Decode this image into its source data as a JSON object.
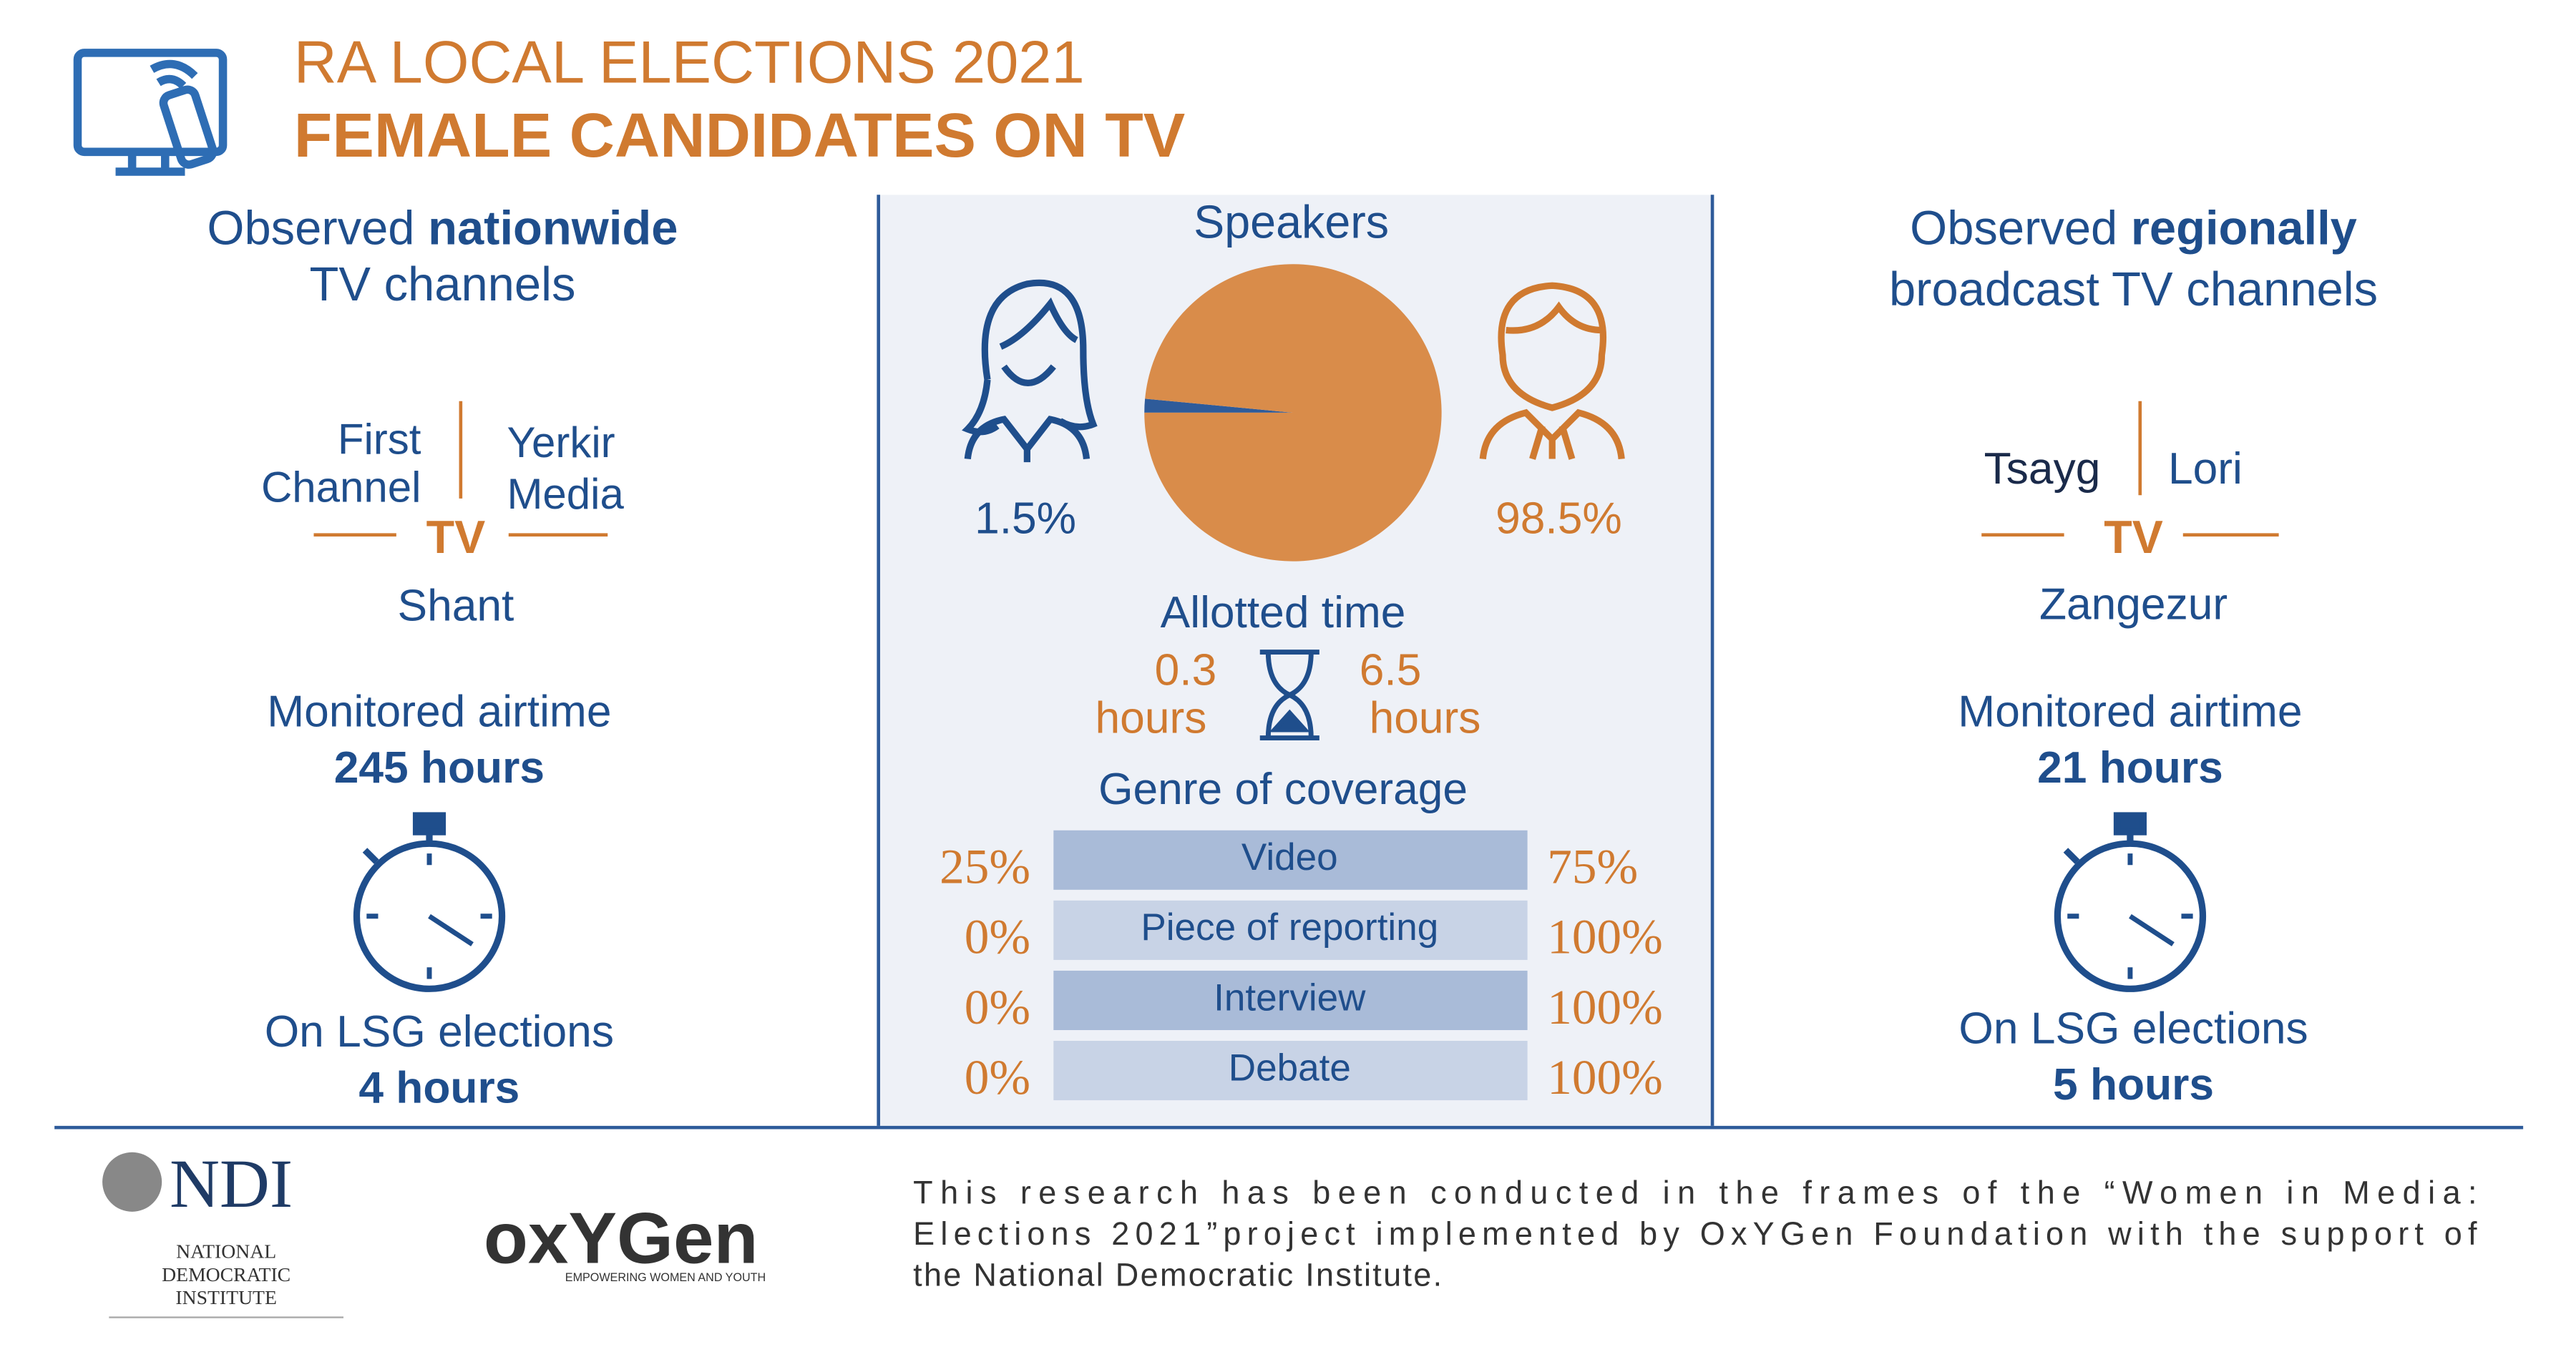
{
  "header": {
    "title": "RA LOCAL ELECTIONS 2021",
    "subtitle": "FEMALE CANDIDATES ON TV"
  },
  "nationwide": {
    "heading": [
      "Observed ",
      "nationwide",
      "TV channels"
    ],
    "channels": [
      [
        "First",
        "Channel"
      ],
      [
        "Yerkir",
        "Media"
      ],
      [
        "Shant"
      ]
    ],
    "tv": "TV",
    "airtime_label": "Monitored airtime",
    "airtime": "245 hours",
    "lsg_label": "On LSG elections",
    "lsg": "4 hours"
  },
  "regional": {
    "heading": [
      "Observed ",
      "regionally",
      "broadcast TV channels"
    ],
    "channels": [
      [
        "Tsayg"
      ],
      [
        "Lori"
      ],
      [
        "Zangezur"
      ]
    ],
    "tv": "TV",
    "airtime_label": "Monitored airtime",
    "airtime": "21 hours",
    "lsg_label": "On LSG elections",
    "lsg": "5 hours"
  },
  "chart_data": {
    "type": "pie",
    "title": "Speakers",
    "values": [
      1.5,
      98.5
    ],
    "value_labels": [
      "1.5%",
      "98.5%"
    ],
    "colors": [
      "#2e5b9a",
      "#d98c4a"
    ]
  },
  "allotted_time": {
    "title": "Allotted time",
    "female": [
      "0.3",
      "hours"
    ],
    "male": [
      "6.5",
      "hours"
    ]
  },
  "genre": {
    "title": "Genre of coverage",
    "rows": [
      [
        "25%",
        "Video",
        "75%"
      ],
      [
        "0%",
        "Piece of reporting",
        "100%"
      ],
      [
        "0%",
        "Interview",
        "100%"
      ],
      [
        "0%",
        "Debate",
        "100%"
      ]
    ]
  },
  "footer": {
    "text": [
      "This research has been conducted in the frames of the “Women in Media:",
      "Elections 2021”project implemented by OxYGen Foundation with the support of",
      "the National Democratic Institute."
    ],
    "ndi": "NDI",
    "ndi_full": [
      "NATIONAL",
      "DEMOCRATIC",
      "INSTITUTE"
    ],
    "oxygen": "oxYGen",
    "oxygen_tag": "EMPOWERING WOMEN AND YOUTH"
  }
}
